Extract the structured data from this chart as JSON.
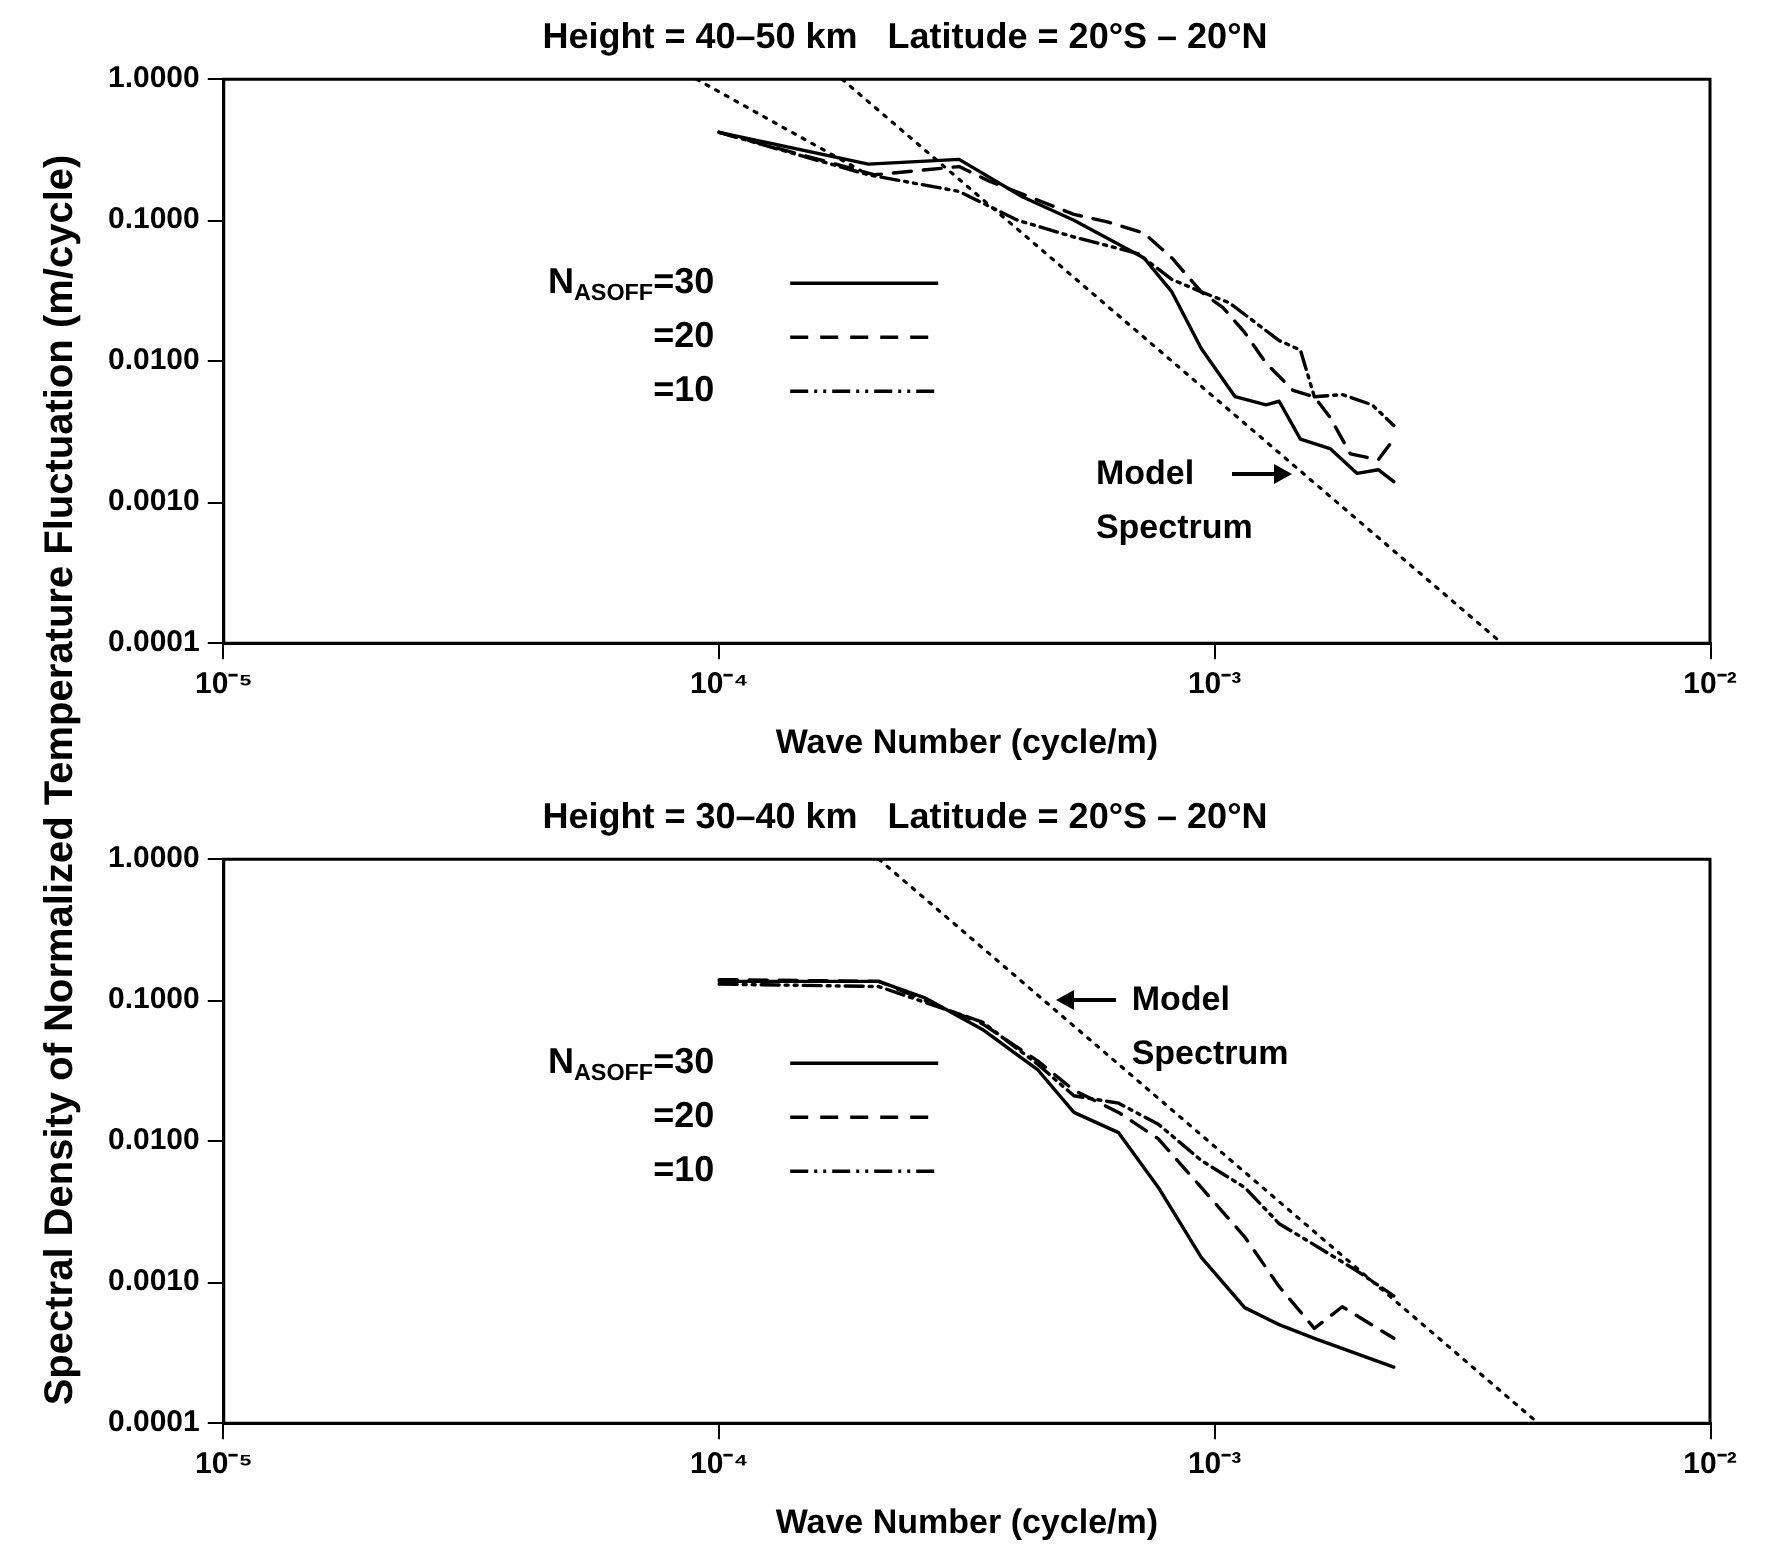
{
  "chart_data": [
    {
      "type": "line",
      "title": "Height = 40–50 km   Latitude = 20°S – 20°N",
      "xlabel": "Wave Number (cycle/m)",
      "ylabel": "Spectral Density of Normalized Temperature Fluctuation (m/cycle)",
      "log": "xy",
      "grid": false,
      "legend": "left",
      "marker": "none",
      "xlim": [
        1e-05,
        0.01
      ],
      "xticks": [
        {
          "value": 1e-05,
          "label": "10⁻⁵"
        },
        {
          "value": 0.0001,
          "label": "10⁻⁴"
        },
        {
          "value": 0.001,
          "label": "10⁻³"
        },
        {
          "value": 0.01,
          "label": "10⁻²"
        }
      ],
      "ylim": [
        0.0001,
        1
      ],
      "yticks": [
        {
          "value": 0.0001,
          "label": "0.0001"
        },
        {
          "value": 0.001,
          "label": "0.0010"
        },
        {
          "value": 0.01,
          "label": "0.0100"
        },
        {
          "value": 0.1,
          "label": "0.1000"
        },
        {
          "value": 1,
          "label": "1.0000"
        }
      ],
      "annotations": [
        "Model Spectrum"
      ],
      "series": [
        {
          "name": "N$_{ASOFF}$=30",
          "color": "#000000",
          "line_style": "solid",
          "x": [
            0.0001,
            0.0002,
            0.000305,
            0.00041,
            0.00052,
            0.00072,
            0.00082,
            0.00094,
            0.0011,
            0.00127,
            0.00135,
            0.00149,
            0.00171,
            0.00194,
            0.00214,
            0.0023
          ],
          "values": [
            0.42,
            0.25,
            0.27,
            0.146,
            0.1,
            0.054,
            0.031,
            0.0123,
            0.0056,
            0.0049,
            0.0052,
            0.0028,
            0.0024,
            0.0016,
            0.0017,
            0.0014
          ]
        },
        {
          "name": "=20",
          "color": "#000000",
          "line_style": "dashed",
          "x": [
            0.0001,
            0.000206,
            0.000305,
            0.00035,
            0.00052,
            0.00061,
            0.00072,
            0.00082,
            0.00094,
            0.00104,
            0.00115,
            0.00127,
            0.00144,
            0.00159,
            0.00171,
            0.00188,
            0.00214,
            0.0023
          ],
          "values": [
            0.42,
            0.21,
            0.24,
            0.19,
            0.11,
            0.097,
            0.081,
            0.054,
            0.031,
            0.024,
            0.016,
            0.0097,
            0.0062,
            0.0056,
            0.004,
            0.0022,
            0.002,
            0.0028
          ]
        },
        {
          "name": "=10",
          "color": "#000000",
          "line_style": "dashdot",
          "x": [
            0.0001,
            0.0002,
            0.000305,
            0.0004,
            0.00052,
            0.0007,
            0.00082,
            0.00094,
            0.00107,
            0.00135,
            0.00149,
            0.00159,
            0.00181,
            0.00208,
            0.0023
          ],
          "values": [
            0.42,
            0.21,
            0.16,
            0.1,
            0.076,
            0.058,
            0.038,
            0.031,
            0.026,
            0.014,
            0.012,
            0.0056,
            0.0058,
            0.0049,
            0.0035
          ]
        },
        {
          "type": "line",
          "color": "#000000",
          "line_style": "dotted",
          "x": [
            0.000177,
            0.0038
          ],
          "values": [
            1,
            0.0001
          ]
        },
        {
          "type": "line",
          "color": "#000000",
          "line_style": "dotted",
          "x": [
            9e-05,
            0.0002
          ],
          "values": [
            1,
            0.21
          ]
        }
      ]
    },
    {
      "type": "line",
      "title": "Height = 30–40 km   Latitude = 20°S – 20°N",
      "xlabel": "Wave Number (cycle/m)",
      "log": "xy",
      "grid": false,
      "legend": "left",
      "marker": "none",
      "xlim": [
        1e-05,
        0.01
      ],
      "xticks": [
        {
          "value": 1e-05,
          "label": "10⁻⁵"
        },
        {
          "value": 0.0001,
          "label": "10⁻⁴"
        },
        {
          "value": 0.001,
          "label": "10⁻³"
        },
        {
          "value": 0.01,
          "label": "10⁻²"
        }
      ],
      "ylim": [
        0.0001,
        1
      ],
      "yticks": [
        {
          "value": 0.0001,
          "label": "0.0001"
        },
        {
          "value": 0.001,
          "label": "0.0010"
        },
        {
          "value": 0.01,
          "label": "0.0100"
        },
        {
          "value": 0.1,
          "label": "0.1000"
        },
        {
          "value": 1,
          "label": "1.0000"
        }
      ],
      "annotations": [
        "Model Spectrum"
      ],
      "series": [
        {
          "name": "N$_{ASOFF}$=30",
          "color": "#000000",
          "line_style": "solid",
          "x": [
            0.0001,
            0.00021,
            0.00026,
            0.00034,
            0.00044,
            0.00052,
            0.00064,
            0.00077,
            0.00094,
            0.00115,
            0.00135,
            0.00159,
            0.00194,
            0.0023
          ],
          "values": [
            0.136,
            0.136,
            0.104,
            0.062,
            0.032,
            0.016,
            0.0115,
            0.0047,
            0.0015,
            0.00066,
            0.0005,
            0.0004,
            0.00031,
            0.00025
          ]
        },
        {
          "name": "=20",
          "color": "#000000",
          "line_style": "dashed",
          "x": [
            0.0001,
            0.00021,
            0.00034,
            0.00044,
            0.00052,
            0.00064,
            0.00077,
            0.00094,
            0.00115,
            0.00135,
            0.00159,
            0.00181,
            0.0023
          ],
          "values": [
            0.14,
            0.136,
            0.068,
            0.037,
            0.023,
            0.016,
            0.0104,
            0.0047,
            0.0021,
            0.00093,
            0.00047,
            0.00067,
            0.0004
          ]
        },
        {
          "name": "=10",
          "color": "#000000",
          "line_style": "dashdot",
          "x": [
            0.0001,
            0.00021,
            0.00034,
            0.00044,
            0.00052,
            0.00064,
            0.00077,
            0.00094,
            0.00115,
            0.00135,
            0.00165,
            0.00194,
            0.0023
          ],
          "values": [
            0.13,
            0.125,
            0.07,
            0.035,
            0.021,
            0.0186,
            0.0132,
            0.0073,
            0.0047,
            0.0026,
            0.0017,
            0.0012,
            0.0008
          ]
        },
        {
          "type": "line",
          "color": "#000000",
          "line_style": "dotted",
          "x": [
            0.00021,
            0.0045
          ],
          "values": [
            1,
            0.0001
          ]
        }
      ]
    }
  ]
}
